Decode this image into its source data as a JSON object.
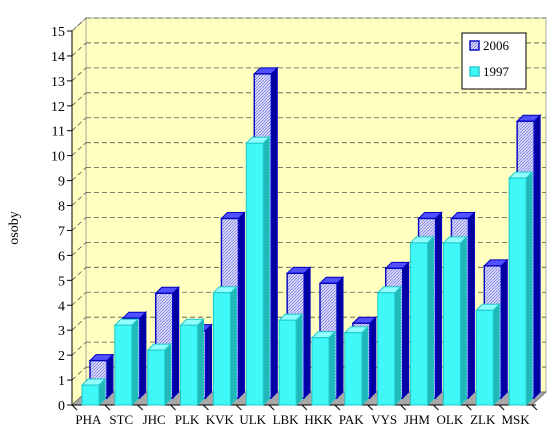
{
  "chart_data": {
    "type": "bar",
    "ylabel": "osoby",
    "ylim": [
      0,
      15
    ],
    "yticks": [
      0,
      1,
      2,
      3,
      4,
      5,
      6,
      7,
      8,
      9,
      10,
      11,
      12,
      13,
      14,
      15
    ],
    "grid": true,
    "legend_position": "top-right",
    "categories": [
      "PHA",
      "STC",
      "JHC",
      "PLK",
      "KVK",
      "ULK",
      "LBK",
      "HKK",
      "PAK",
      "VYS",
      "JHM",
      "OLK",
      "ZLK",
      "MSK"
    ],
    "series": [
      {
        "name": "2006",
        "color": "#1010c8",
        "values": [
          1.5,
          3.2,
          4.2,
          2.7,
          7.2,
          13.0,
          5.0,
          4.6,
          3.0,
          5.2,
          7.2,
          7.2,
          5.3,
          11.1
        ]
      },
      {
        "name": "1997",
        "color": "#33f0f0",
        "values": [
          0.8,
          3.2,
          2.2,
          3.2,
          4.5,
          10.5,
          3.4,
          2.7,
          2.9,
          4.5,
          6.5,
          6.5,
          3.8,
          9.1
        ]
      }
    ]
  }
}
